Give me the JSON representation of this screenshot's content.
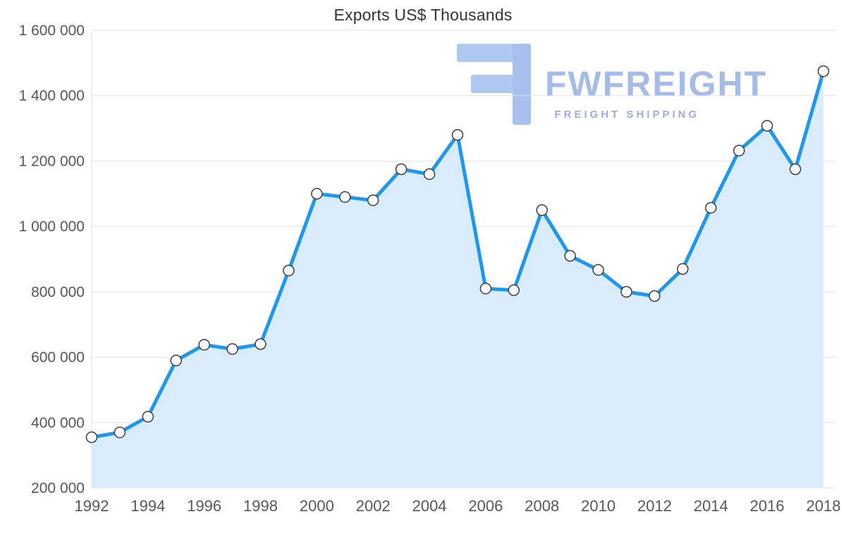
{
  "title": "Exports US$ Thousands",
  "watermark": {
    "brand": "FWFREIGHT",
    "tagline": "FREIGHT SHIPPING"
  },
  "colors": {
    "line": "#1f97ee",
    "area": "#d9ecfb",
    "marker_fill": "#ffffff",
    "marker_stroke": "#3c3c3c",
    "grid": "#e2e2e2",
    "axis_text": "#575757",
    "title_text": "#333333",
    "watermark_text": "#a5bce9",
    "watermark_tagline": "#9fabdc",
    "watermark_glyph": "#b0c7f0"
  },
  "chart_data": {
    "type": "area",
    "title": "Exports US$ Thousands",
    "xlabel": "",
    "ylabel": "",
    "grid": "horizontal",
    "legend": "none",
    "ylim": [
      200000,
      1600000
    ],
    "x": [
      1992,
      1993,
      1994,
      1995,
      1996,
      1997,
      1998,
      1999,
      2000,
      2001,
      2002,
      2003,
      2004,
      2005,
      2006,
      2007,
      2008,
      2009,
      2010,
      2011,
      2012,
      2013,
      2014,
      2015,
      2016,
      2017,
      2018
    ],
    "values": [
      355000,
      370000,
      418000,
      590000,
      638000,
      625000,
      640000,
      865000,
      1100000,
      1090000,
      1080000,
      1175000,
      1160000,
      1280000,
      810000,
      805000,
      1050000,
      910000,
      867000,
      800000,
      787000,
      870000,
      1057000,
      1232000,
      1308000,
      1175000,
      1475000
    ],
    "y_ticks": [
      200000,
      400000,
      600000,
      800000,
      1000000,
      1200000,
      1400000,
      1600000
    ],
    "y_tick_labels": [
      "200 000",
      "400 000",
      "600 000",
      "800 000",
      "1 000 000",
      "1 200 000",
      "1 400 000",
      "1 600 000"
    ],
    "x_tick_labels": [
      "1992",
      "1994",
      "1996",
      "1998",
      "2000",
      "2002",
      "2004",
      "2006",
      "2008",
      "2010",
      "2012",
      "2014",
      "2016",
      "2018"
    ]
  }
}
